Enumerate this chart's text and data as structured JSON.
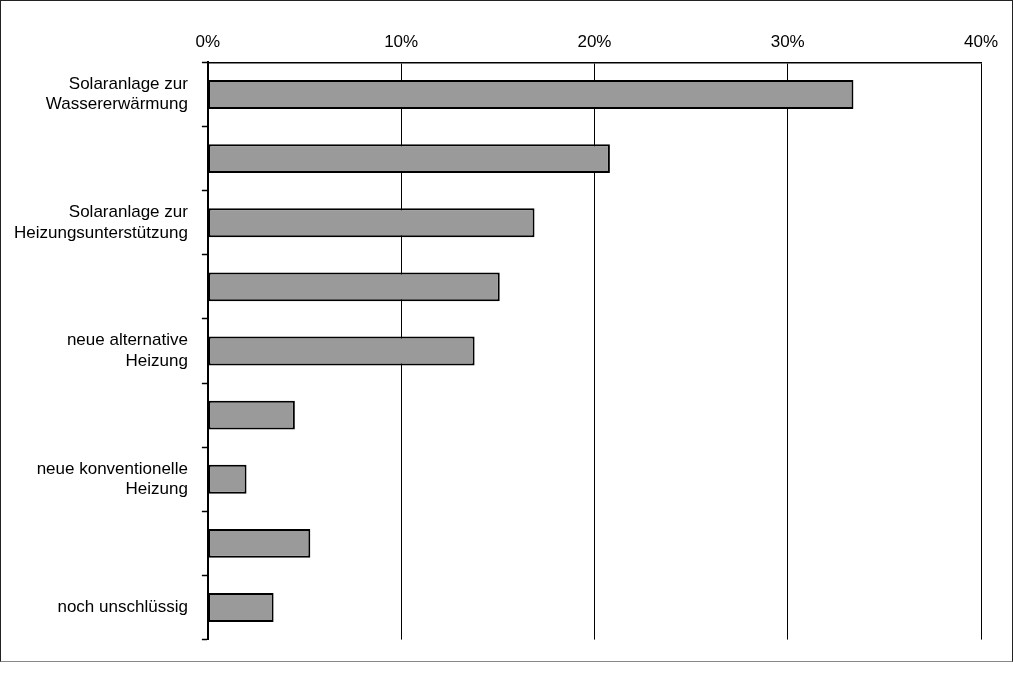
{
  "chart_data": {
    "type": "bar",
    "orientation": "horizontal",
    "categories": [
      "Solaranlage zur Wassererwärmung",
      null,
      "Solaranlage zur Heizungsunterstützung",
      null,
      "neue alternative Heizung",
      null,
      "neue konventionelle Heizung",
      null,
      "noch unschlüssig"
    ],
    "values": [
      33.4,
      20.8,
      16.9,
      15.1,
      13.8,
      4.5,
      2.0,
      5.3,
      3.4
    ],
    "color": "#9a9a9a",
    "xlim": [
      0,
      40
    ],
    "xticks": [
      {
        "value": 0,
        "label": "0%"
      },
      {
        "value": 10,
        "label": "10%"
      },
      {
        "value": 20,
        "label": "20%"
      },
      {
        "value": 30,
        "label": "30%"
      },
      {
        "value": 40,
        "label": "40%"
      }
    ],
    "grid": "x"
  }
}
